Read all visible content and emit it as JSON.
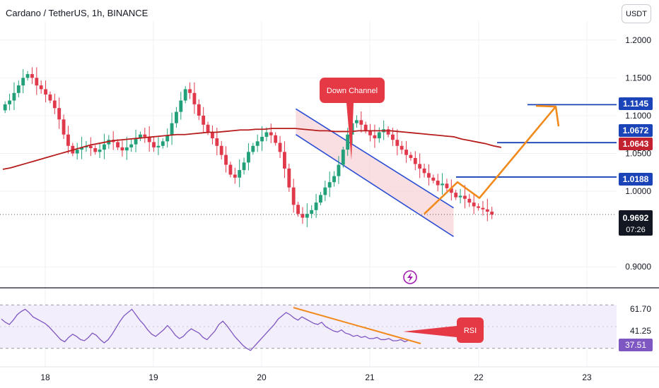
{
  "header": {
    "title": "Cardano / TetherUS, 1h, BINANCE",
    "currency": "USDT"
  },
  "colors": {
    "up": "#22a07a",
    "down": "#e0394b",
    "ma": "#b71c1c",
    "hline": "#1a44b8",
    "arrow": "#f08a1c",
    "channel_border": "#2a4dd4",
    "channel_fill": "#f4c4c8",
    "rsi_line": "#7e57c2",
    "rsi_band": "#f3eefb",
    "callout": "#e53945",
    "price_tag": "#131722",
    "red_tag": "#c2212f",
    "blue_tag": "#1a44b8"
  },
  "chart_data": [
    {
      "type": "candlestick",
      "symbol": "Cardano / TetherUS",
      "interval": "1h",
      "exchange": "BINANCE",
      "x_tick_labels": [
        "18",
        "19",
        "20",
        "21",
        "22",
        "23"
      ],
      "y_tick_labels": [
        "1.2000",
        "1.1500",
        "1.1000",
        "1.0500",
        "1.0000",
        "0.9000"
      ],
      "ylim": [
        0.875,
        1.225
      ],
      "close_series": [
        1.115,
        1.12,
        1.13,
        1.14,
        1.15,
        1.155,
        1.15,
        1.14,
        1.135,
        1.128,
        1.12,
        1.11,
        1.095,
        1.075,
        1.06,
        1.05,
        1.055,
        1.058,
        1.06,
        1.057,
        1.052,
        1.055,
        1.062,
        1.068,
        1.065,
        1.058,
        1.054,
        1.058,
        1.062,
        1.07,
        1.075,
        1.072,
        1.065,
        1.058,
        1.06,
        1.066,
        1.074,
        1.09,
        1.105,
        1.12,
        1.135,
        1.13,
        1.115,
        1.1,
        1.088,
        1.078,
        1.07,
        1.06,
        1.048,
        1.035,
        1.022,
        1.018,
        1.028,
        1.038,
        1.052,
        1.06,
        1.066,
        1.072,
        1.078,
        1.074,
        1.064,
        1.052,
        1.03,
        1.005,
        0.982,
        0.97,
        0.965,
        0.97,
        0.975,
        0.985,
        0.995,
        1.005,
        1.012,
        1.02,
        1.035,
        1.055,
        1.075,
        1.09,
        1.094,
        1.088,
        1.08,
        1.074,
        1.07,
        1.078,
        1.082,
        1.075,
        1.068,
        1.06,
        1.055,
        1.048,
        1.044,
        1.036,
        1.03,
        1.024,
        1.018,
        1.014,
        1.008,
        1.01,
        1.004,
        0.998,
        0.992,
        0.994,
        0.99,
        0.985,
        0.98,
        0.978,
        0.976,
        0.973,
        0.969
      ],
      "moving_average": [
        1.029,
        1.031,
        1.034,
        1.037,
        1.04,
        1.043,
        1.046,
        1.049,
        1.052,
        1.055,
        1.058,
        1.061,
        1.063,
        1.065,
        1.067,
        1.068,
        1.069,
        1.07,
        1.071,
        1.072,
        1.073,
        1.074,
        1.075,
        1.075,
        1.076,
        1.077,
        1.078,
        1.078,
        1.079,
        1.08,
        1.081,
        1.081,
        1.082,
        1.082,
        1.083,
        1.083,
        1.083,
        1.083,
        1.082,
        1.081,
        1.08,
        1.08,
        1.079,
        1.079,
        1.079,
        1.08,
        1.08,
        1.08,
        1.08,
        1.08,
        1.079,
        1.078,
        1.077,
        1.076,
        1.075,
        1.074,
        1.073,
        1.072,
        1.069,
        1.067,
        1.065,
        1.063,
        1.06,
        1.058
      ],
      "horizontal_levels": [
        1.1145,
        1.0643,
        1.0188
      ],
      "price_labels": [
        {
          "text": "1.1145",
          "value": 1.1145,
          "style": "blue"
        },
        {
          "text": "1.0672",
          "value": 1.0672,
          "style": "blue"
        },
        {
          "text": "1.0643",
          "value": 1.0643,
          "style": "red"
        },
        {
          "text": "1.0188",
          "value": 1.0188,
          "style": "blue"
        }
      ],
      "current_price": {
        "value": "0.9692",
        "countdown": "07:26"
      },
      "annotations": [
        "Down Channel"
      ],
      "projection": {
        "points": [
          0.97,
          1.012,
          0.991,
          1.112
        ]
      }
    },
    {
      "type": "line",
      "name": "RSI",
      "y_tick_labels": [
        "61.70",
        "41.25"
      ],
      "current_value": "37.51",
      "levels": [
        70,
        30
      ],
      "ylim": [
        22,
        78
      ],
      "values": [
        57,
        54,
        52,
        56,
        61,
        64,
        66,
        63,
        59,
        57,
        55,
        53,
        50,
        46,
        42,
        38,
        36,
        40,
        43,
        41,
        38,
        37,
        40,
        44,
        42,
        38,
        35,
        38,
        43,
        49,
        55,
        60,
        63,
        66,
        61,
        56,
        52,
        47,
        43,
        41,
        44,
        47,
        51,
        47,
        42,
        39,
        41,
        45,
        48,
        46,
        44,
        40,
        38,
        42,
        46,
        52,
        55,
        51,
        46,
        41,
        37,
        33,
        30,
        28,
        32,
        36,
        40,
        44,
        48,
        52,
        57,
        60,
        63,
        61,
        58,
        56,
        59,
        57,
        55,
        53,
        52,
        54,
        50,
        48,
        46,
        45,
        47,
        44,
        43,
        41,
        42,
        40,
        41,
        39,
        39,
        40,
        38,
        38,
        39,
        37,
        37,
        38,
        36,
        37.51
      ],
      "divergence_label": "RSI"
    }
  ]
}
